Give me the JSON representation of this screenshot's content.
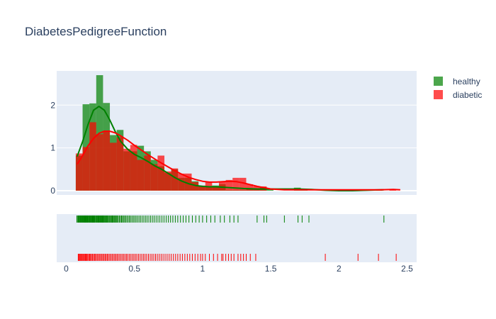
{
  "chart_data": {
    "type": "histogram",
    "title": "DiabetesPedigreeFunction",
    "xlim": [
      -0.07,
      2.57
    ],
    "ylim": [
      -0.1,
      2.8
    ],
    "x_ticks": [
      0,
      0.5,
      1,
      1.5,
      2,
      2.5
    ],
    "x_tick_labels": [
      "0",
      "0.5",
      "1",
      "1.5",
      "2",
      "2.5"
    ],
    "y_ticks": [
      0,
      1,
      2
    ],
    "y_tick_labels": [
      "0",
      "1",
      "2"
    ],
    "grid": true,
    "legend_position": "top-right",
    "colors": {
      "plot_bg": "#e5ecf6",
      "grid": "#ffffff",
      "text": "#2a3f5f",
      "healthy": "#008000",
      "diabetic": "#ff0000",
      "overlap": "#4c5b15"
    },
    "series": [
      {
        "name": "healthy",
        "color": "#008000",
        "bins": [
          {
            "x0": 0.07,
            "x1": 0.12,
            "y": 0.82
          },
          {
            "x0": 0.12,
            "x1": 0.17,
            "y": 2.02
          },
          {
            "x0": 0.17,
            "x1": 0.22,
            "y": 2.04
          },
          {
            "x0": 0.22,
            "x1": 0.27,
            "y": 2.7
          },
          {
            "x0": 0.27,
            "x1": 0.32,
            "y": 2.05
          },
          {
            "x0": 0.32,
            "x1": 0.37,
            "y": 1.3
          },
          {
            "x0": 0.37,
            "x1": 0.42,
            "y": 1.42
          },
          {
            "x0": 0.42,
            "x1": 0.47,
            "y": 0.92
          },
          {
            "x0": 0.47,
            "x1": 0.52,
            "y": 0.92
          },
          {
            "x0": 0.52,
            "x1": 0.57,
            "y": 1.05
          },
          {
            "x0": 0.57,
            "x1": 0.62,
            "y": 0.92
          },
          {
            "x0": 0.62,
            "x1": 0.67,
            "y": 0.72
          },
          {
            "x0": 0.67,
            "x1": 0.72,
            "y": 0.57
          },
          {
            "x0": 0.72,
            "x1": 0.77,
            "y": 0.42
          },
          {
            "x0": 0.77,
            "x1": 0.82,
            "y": 0.5
          },
          {
            "x0": 0.82,
            "x1": 0.87,
            "y": 0.3
          },
          {
            "x0": 0.87,
            "x1": 0.92,
            "y": 0.3
          },
          {
            "x0": 0.92,
            "x1": 0.97,
            "y": 0.22
          },
          {
            "x0": 0.97,
            "x1": 1.02,
            "y": 0.1
          },
          {
            "x0": 1.02,
            "x1": 1.07,
            "y": 0.1
          },
          {
            "x0": 1.07,
            "x1": 1.12,
            "y": 0.12
          },
          {
            "x0": 1.12,
            "x1": 1.17,
            "y": 0.15
          },
          {
            "x0": 1.17,
            "x1": 1.22,
            "y": 0.02
          },
          {
            "x0": 1.22,
            "x1": 1.27,
            "y": 0.02
          },
          {
            "x0": 1.27,
            "x1": 1.32,
            "y": 0.02
          },
          {
            "x0": 1.32,
            "x1": 1.37,
            "y": 0.05
          },
          {
            "x0": 1.37,
            "x1": 1.42,
            "y": 0.05
          },
          {
            "x0": 1.42,
            "x1": 1.47,
            "y": 0.08
          },
          {
            "x0": 1.47,
            "x1": 1.52,
            "y": 0.05
          },
          {
            "x0": 1.67,
            "x1": 1.72,
            "y": 0.07
          },
          {
            "x0": 1.72,
            "x1": 1.77,
            "y": 0.03
          },
          {
            "x0": 2.27,
            "x1": 2.32,
            "y": 0.03
          }
        ],
        "kde": [
          [
            0.08,
            0.8
          ],
          [
            0.12,
            1.15
          ],
          [
            0.16,
            1.55
          ],
          [
            0.2,
            1.88
          ],
          [
            0.24,
            1.97
          ],
          [
            0.28,
            1.88
          ],
          [
            0.32,
            1.65
          ],
          [
            0.36,
            1.38
          ],
          [
            0.4,
            1.15
          ],
          [
            0.45,
            0.97
          ],
          [
            0.5,
            0.85
          ],
          [
            0.55,
            0.77
          ],
          [
            0.6,
            0.68
          ],
          [
            0.65,
            0.58
          ],
          [
            0.7,
            0.5
          ],
          [
            0.75,
            0.4
          ],
          [
            0.8,
            0.3
          ],
          [
            0.85,
            0.22
          ],
          [
            0.9,
            0.16
          ],
          [
            0.95,
            0.12
          ],
          [
            1.0,
            0.1
          ],
          [
            1.05,
            0.09
          ],
          [
            1.1,
            0.09
          ],
          [
            1.15,
            0.08
          ],
          [
            1.2,
            0.07
          ],
          [
            1.3,
            0.05
          ],
          [
            1.4,
            0.04
          ],
          [
            1.5,
            0.04
          ],
          [
            1.6,
            0.04
          ],
          [
            1.7,
            0.04
          ],
          [
            1.8,
            0.03
          ],
          [
            1.9,
            0.01
          ],
          [
            2.0,
            0.0
          ],
          [
            2.1,
            0.0
          ],
          [
            2.2,
            0.01
          ],
          [
            2.3,
            0.02
          ],
          [
            2.33,
            0.02
          ]
        ],
        "rug": [
          0.078,
          0.085,
          0.088,
          0.092,
          0.095,
          0.1,
          0.103,
          0.107,
          0.11,
          0.115,
          0.118,
          0.122,
          0.127,
          0.13,
          0.134,
          0.138,
          0.14,
          0.143,
          0.147,
          0.15,
          0.154,
          0.158,
          0.162,
          0.165,
          0.17,
          0.174,
          0.178,
          0.183,
          0.187,
          0.19,
          0.195,
          0.2,
          0.204,
          0.208,
          0.212,
          0.218,
          0.222,
          0.227,
          0.232,
          0.236,
          0.24,
          0.245,
          0.25,
          0.254,
          0.258,
          0.263,
          0.268,
          0.272,
          0.277,
          0.282,
          0.287,
          0.292,
          0.297,
          0.302,
          0.308,
          0.314,
          0.32,
          0.326,
          0.332,
          0.338,
          0.344,
          0.35,
          0.356,
          0.362,
          0.368,
          0.375,
          0.382,
          0.39,
          0.398,
          0.405,
          0.412,
          0.42,
          0.428,
          0.436,
          0.445,
          0.454,
          0.463,
          0.472,
          0.482,
          0.492,
          0.502,
          0.512,
          0.523,
          0.534,
          0.545,
          0.557,
          0.569,
          0.581,
          0.593,
          0.606,
          0.619,
          0.632,
          0.645,
          0.659,
          0.673,
          0.687,
          0.702,
          0.717,
          0.733,
          0.749,
          0.765,
          0.782,
          0.8,
          0.818,
          0.838,
          0.858,
          0.878,
          0.9,
          0.925,
          0.95,
          0.975,
          1.0,
          1.03,
          1.06,
          1.09,
          1.13,
          1.16,
          1.2,
          1.23,
          1.26,
          1.4,
          1.45,
          1.47,
          1.6,
          1.7,
          1.73,
          1.78,
          2.33
        ]
      },
      {
        "name": "diabetic",
        "color": "#ff0000",
        "bins": [
          {
            "x0": 0.07,
            "x1": 0.12,
            "y": 0.87
          },
          {
            "x0": 0.12,
            "x1": 0.17,
            "y": 1.02
          },
          {
            "x0": 0.17,
            "x1": 0.22,
            "y": 1.6
          },
          {
            "x0": 0.22,
            "x1": 0.27,
            "y": 1.32
          },
          {
            "x0": 0.27,
            "x1": 0.32,
            "y": 1.4
          },
          {
            "x0": 0.32,
            "x1": 0.37,
            "y": 1.12
          },
          {
            "x0": 0.37,
            "x1": 0.42,
            "y": 1.25
          },
          {
            "x0": 0.42,
            "x1": 0.47,
            "y": 0.98
          },
          {
            "x0": 0.47,
            "x1": 0.52,
            "y": 1.07
          },
          {
            "x0": 0.52,
            "x1": 0.57,
            "y": 0.72
          },
          {
            "x0": 0.57,
            "x1": 0.62,
            "y": 0.82
          },
          {
            "x0": 0.62,
            "x1": 0.67,
            "y": 0.62
          },
          {
            "x0": 0.67,
            "x1": 0.72,
            "y": 0.82
          },
          {
            "x0": 0.72,
            "x1": 0.77,
            "y": 0.45
          },
          {
            "x0": 0.77,
            "x1": 0.82,
            "y": 0.52
          },
          {
            "x0": 0.82,
            "x1": 0.87,
            "y": 0.4
          },
          {
            "x0": 0.87,
            "x1": 0.92,
            "y": 0.4
          },
          {
            "x0": 0.92,
            "x1": 0.97,
            "y": 0.2
          },
          {
            "x0": 0.97,
            "x1": 1.02,
            "y": 0.12
          },
          {
            "x0": 1.02,
            "x1": 1.07,
            "y": 0.2
          },
          {
            "x0": 1.07,
            "x1": 1.12,
            "y": 0.1
          },
          {
            "x0": 1.12,
            "x1": 1.17,
            "y": 0.2
          },
          {
            "x0": 1.17,
            "x1": 1.22,
            "y": 0.25
          },
          {
            "x0": 1.22,
            "x1": 1.27,
            "y": 0.3
          },
          {
            "x0": 1.27,
            "x1": 1.32,
            "y": 0.3
          },
          {
            "x0": 1.32,
            "x1": 1.37,
            "y": 0.15
          },
          {
            "x0": 1.37,
            "x1": 1.42,
            "y": 0.1
          },
          {
            "x0": 1.42,
            "x1": 1.47,
            "y": 0.1
          },
          {
            "x0": 1.87,
            "x1": 1.92,
            "y": 0.02
          },
          {
            "x0": 2.12,
            "x1": 2.17,
            "y": 0.02
          },
          {
            "x0": 2.27,
            "x1": 2.32,
            "y": 0.02
          },
          {
            "x0": 2.37,
            "x1": 2.42,
            "y": 0.04
          }
        ],
        "kde": [
          [
            0.08,
            0.62
          ],
          [
            0.12,
            0.82
          ],
          [
            0.16,
            1.05
          ],
          [
            0.2,
            1.22
          ],
          [
            0.24,
            1.34
          ],
          [
            0.28,
            1.39
          ],
          [
            0.32,
            1.39
          ],
          [
            0.36,
            1.35
          ],
          [
            0.4,
            1.28
          ],
          [
            0.45,
            1.18
          ],
          [
            0.5,
            1.06
          ],
          [
            0.55,
            0.95
          ],
          [
            0.6,
            0.84
          ],
          [
            0.65,
            0.74
          ],
          [
            0.7,
            0.64
          ],
          [
            0.75,
            0.55
          ],
          [
            0.8,
            0.46
          ],
          [
            0.85,
            0.38
          ],
          [
            0.9,
            0.31
          ],
          [
            0.95,
            0.26
          ],
          [
            1.0,
            0.22
          ],
          [
            1.05,
            0.2
          ],
          [
            1.1,
            0.2
          ],
          [
            1.15,
            0.21
          ],
          [
            1.2,
            0.22
          ],
          [
            1.25,
            0.21
          ],
          [
            1.3,
            0.18
          ],
          [
            1.35,
            0.14
          ],
          [
            1.4,
            0.1
          ],
          [
            1.45,
            0.07
          ],
          [
            1.5,
            0.04
          ],
          [
            1.6,
            0.02
          ],
          [
            1.7,
            0.02
          ],
          [
            1.8,
            0.02
          ],
          [
            1.9,
            0.02
          ],
          [
            2.0,
            0.02
          ],
          [
            2.1,
            0.02
          ],
          [
            2.2,
            0.02
          ],
          [
            2.3,
            0.02
          ],
          [
            2.4,
            0.03
          ],
          [
            2.45,
            0.02
          ]
        ],
        "rug": [
          0.088,
          0.093,
          0.098,
          0.105,
          0.11,
          0.116,
          0.122,
          0.128,
          0.134,
          0.14,
          0.146,
          0.152,
          0.158,
          0.165,
          0.172,
          0.178,
          0.185,
          0.192,
          0.2,
          0.207,
          0.214,
          0.222,
          0.23,
          0.238,
          0.246,
          0.254,
          0.262,
          0.27,
          0.278,
          0.286,
          0.294,
          0.302,
          0.31,
          0.319,
          0.328,
          0.337,
          0.346,
          0.355,
          0.364,
          0.373,
          0.382,
          0.392,
          0.402,
          0.412,
          0.422,
          0.432,
          0.442,
          0.452,
          0.463,
          0.474,
          0.485,
          0.496,
          0.507,
          0.518,
          0.53,
          0.542,
          0.554,
          0.566,
          0.578,
          0.59,
          0.603,
          0.616,
          0.629,
          0.642,
          0.655,
          0.668,
          0.682,
          0.696,
          0.71,
          0.725,
          0.74,
          0.755,
          0.77,
          0.786,
          0.802,
          0.818,
          0.835,
          0.852,
          0.87,
          0.888,
          0.906,
          0.925,
          0.945,
          0.965,
          0.985,
          1.0,
          1.02,
          1.05,
          1.08,
          1.11,
          1.14,
          1.15,
          1.17,
          1.19,
          1.21,
          1.23,
          1.26,
          1.28,
          1.3,
          1.32,
          1.35,
          1.39,
          1.9,
          2.14,
          2.29,
          2.42
        ]
      }
    ]
  }
}
